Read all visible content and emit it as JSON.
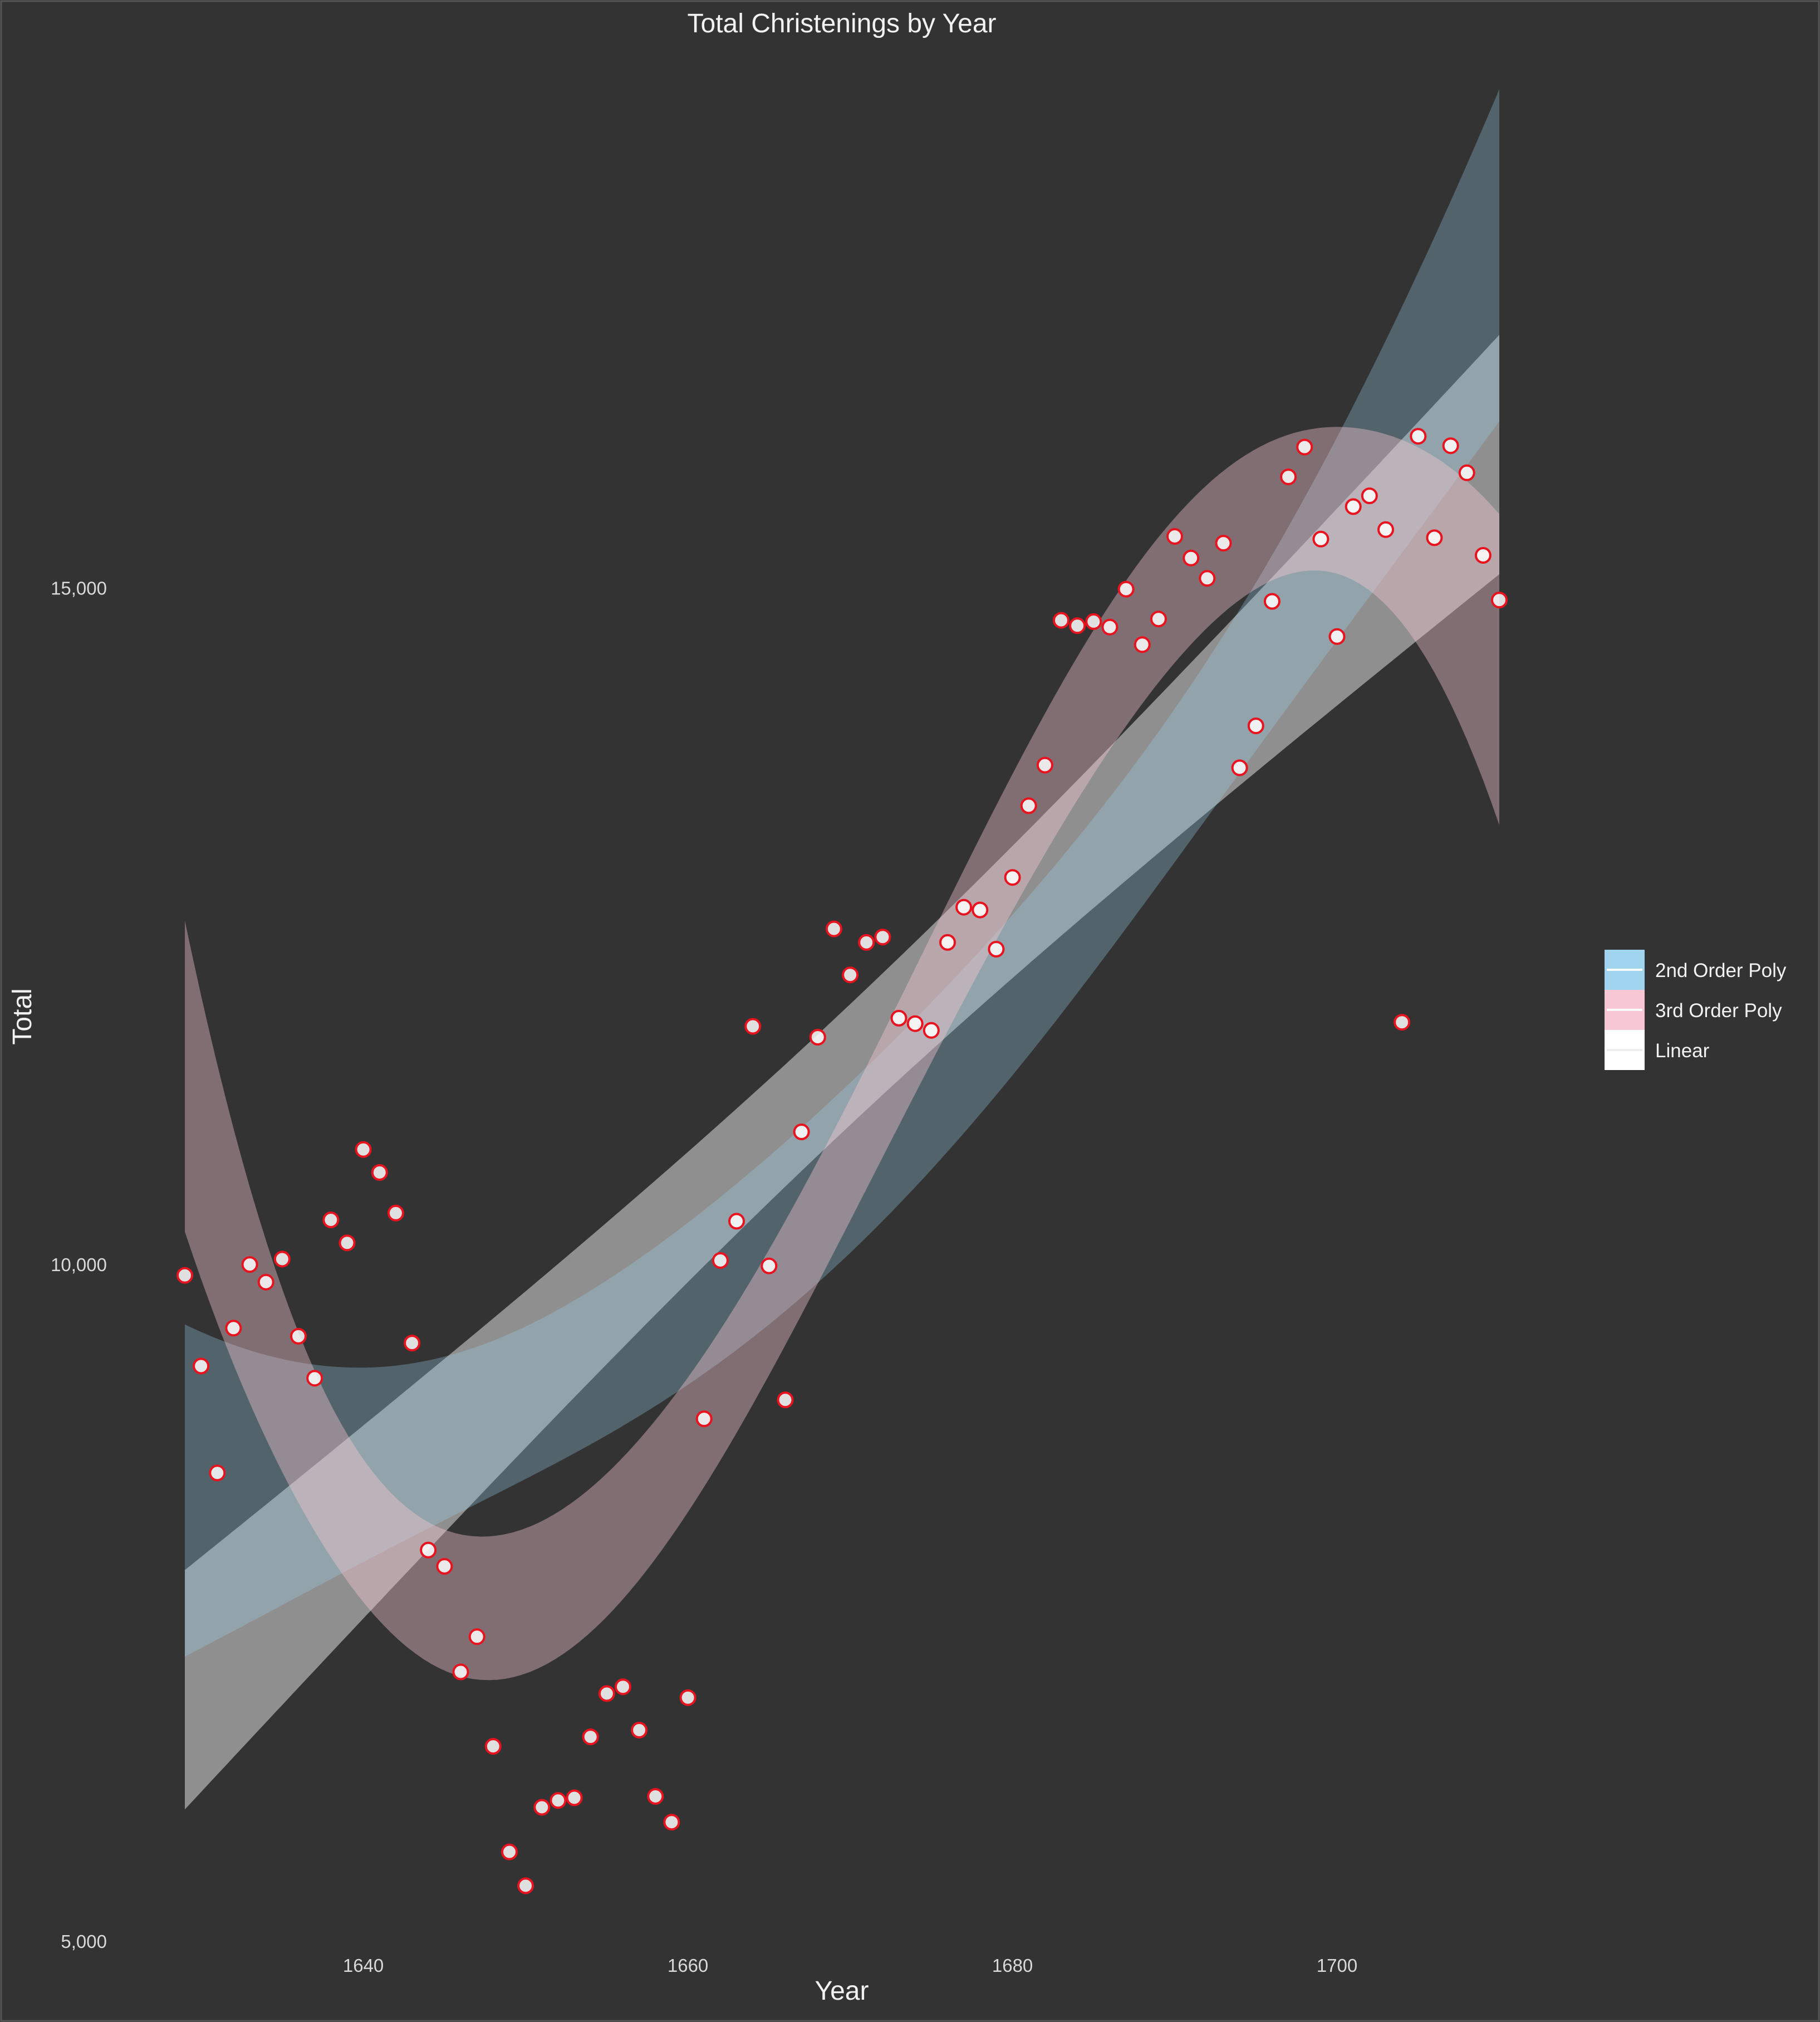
{
  "chart_data": {
    "type": "scatter",
    "title": "Total Christenings by Year",
    "xlabel": "Year",
    "ylabel": "Total",
    "xlim": [
      1629,
      1710
    ],
    "ylim": [
      5000,
      18800
    ],
    "x_ticks": [
      1640,
      1660,
      1680,
      1700
    ],
    "x_tick_labels": [
      "1640",
      "1660",
      "1680",
      "1700"
    ],
    "y_ticks": [
      5000,
      10000,
      15000
    ],
    "y_tick_labels": [
      "5,000",
      "10,000",
      "15,000"
    ],
    "grid": false,
    "background": "#333333",
    "legend": {
      "position": "right",
      "entries": [
        {
          "label": "2nd Order Poly",
          "color": "#9fd3ee"
        },
        {
          "label": "3rd Order Poly",
          "color": "#f7c8d3"
        },
        {
          "label": "Linear",
          "color": "#ffffff"
        }
      ]
    },
    "points": [
      [
        1629,
        9920
      ],
      [
        1630,
        9250
      ],
      [
        1631,
        8460
      ],
      [
        1632,
        9530
      ],
      [
        1633,
        10000
      ],
      [
        1634,
        9870
      ],
      [
        1635,
        10040
      ],
      [
        1636,
        9470
      ],
      [
        1637,
        9160
      ],
      [
        1638,
        10330
      ],
      [
        1639,
        10160
      ],
      [
        1640,
        10850
      ],
      [
        1641,
        10680
      ],
      [
        1642,
        10380
      ],
      [
        1643,
        9420
      ],
      [
        1644,
        7890
      ],
      [
        1645,
        7770
      ],
      [
        1646,
        6990
      ],
      [
        1647,
        7250
      ],
      [
        1648,
        6440
      ],
      [
        1649,
        5660
      ],
      [
        1650,
        5410
      ],
      [
        1651,
        5990
      ],
      [
        1652,
        6040
      ],
      [
        1653,
        6060
      ],
      [
        1654,
        6510
      ],
      [
        1655,
        6830
      ],
      [
        1656,
        6880
      ],
      [
        1657,
        6560
      ],
      [
        1658,
        6070
      ],
      [
        1659,
        5880
      ],
      [
        1660,
        6800
      ],
      [
        1661,
        8860
      ],
      [
        1662,
        10030
      ],
      [
        1663,
        10320
      ],
      [
        1664,
        11760
      ],
      [
        1665,
        9990
      ],
      [
        1666,
        9000
      ],
      [
        1667,
        10980
      ],
      [
        1668,
        11680
      ],
      [
        1669,
        12480
      ],
      [
        1670,
        12140
      ],
      [
        1671,
        12380
      ],
      [
        1672,
        12420
      ],
      [
        1673,
        11820
      ],
      [
        1674,
        11780
      ],
      [
        1675,
        11730
      ],
      [
        1676,
        12380
      ],
      [
        1677,
        12640
      ],
      [
        1678,
        12620
      ],
      [
        1679,
        12330
      ],
      [
        1680,
        12860
      ],
      [
        1681,
        13390
      ],
      [
        1682,
        13690
      ],
      [
        1683,
        14760
      ],
      [
        1684,
        14720
      ],
      [
        1685,
        14750
      ],
      [
        1686,
        14710
      ],
      [
        1687,
        14990
      ],
      [
        1688,
        14580
      ],
      [
        1689,
        14770
      ],
      [
        1690,
        15380
      ],
      [
        1691,
        15220
      ],
      [
        1692,
        15070
      ],
      [
        1693,
        15330
      ],
      [
        1694,
        13670
      ],
      [
        1695,
        13980
      ],
      [
        1696,
        14900
      ],
      [
        1697,
        15820
      ],
      [
        1698,
        16040
      ],
      [
        1699,
        15360
      ],
      [
        1700,
        14640
      ],
      [
        1701,
        15600
      ],
      [
        1702,
        15680
      ],
      [
        1703,
        15430
      ],
      [
        1704,
        11790
      ],
      [
        1705,
        16120
      ],
      [
        1706,
        15370
      ],
      [
        1707,
        16050
      ],
      [
        1708,
        15850
      ],
      [
        1709,
        15240
      ],
      [
        1710,
        14910
      ]
    ]
  }
}
